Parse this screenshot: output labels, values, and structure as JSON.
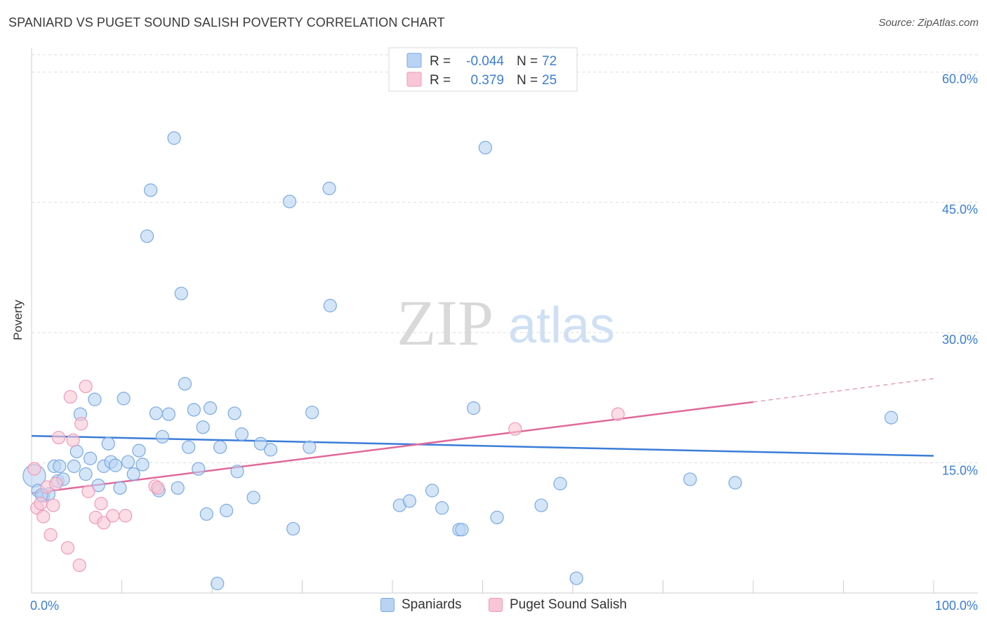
{
  "header": {
    "title": "SPANIARD VS PUGET SOUND SALISH POVERTY CORRELATION CHART",
    "source": "Source: ZipAtlas.com"
  },
  "watermark": {
    "part1": "ZIP",
    "part2": "atlas"
  },
  "colors": {
    "blue": "#3b7dd8",
    "blue_fill": "#b8d3f3",
    "blue_stroke": "#7aaae3",
    "pink": "#e0699a",
    "pink_fill": "#f8c6d6",
    "pink_stroke": "#ee9ab8",
    "tick_label": "#3b7dd8",
    "grid": "#dddddd"
  },
  "legend": {
    "rows": [
      {
        "r_label": "R =",
        "r_value": "-0.044",
        "n_label": "N =",
        "n_value": "72"
      },
      {
        "r_label": "R =",
        "r_value": "0.379",
        "n_label": "N =",
        "n_value": "25"
      }
    ]
  },
  "legend_bottom": {
    "items": [
      "Spaniards",
      "Puget Sound Salish"
    ]
  },
  "chart_data": {
    "type": "scatter",
    "title": "SPANIARD VS PUGET SOUND SALISH POVERTY CORRELATION CHART",
    "xlabel": "",
    "ylabel": "Poverty",
    "xlim": [
      0,
      100
    ],
    "ylim": [
      0,
      62
    ],
    "x_tick_labels": [
      "0.0%",
      "100.0%"
    ],
    "y_ticks": [
      15,
      30,
      45,
      60
    ],
    "y_tick_labels": [
      "15.0%",
      "30.0%",
      "45.0%",
      "60.0%"
    ],
    "series": [
      {
        "name": "Spaniards",
        "r": -0.044,
        "n": 72,
        "trend": {
          "x0": 0,
          "y0": 18.1,
          "x1": 100,
          "y1": 15.8
        },
        "points": [
          [
            0.3,
            13.5
          ],
          [
            0.7,
            11.8
          ],
          [
            1.3,
            11.2
          ],
          [
            1.9,
            11.4
          ],
          [
            2.5,
            14.6
          ],
          [
            2.9,
            12.9
          ],
          [
            3.1,
            14.6
          ],
          [
            3.5,
            13.1
          ],
          [
            4.7,
            14.6
          ],
          [
            5.0,
            16.3
          ],
          [
            5.4,
            20.6
          ],
          [
            6.0,
            13.7
          ],
          [
            6.5,
            15.5
          ],
          [
            7.0,
            22.3
          ],
          [
            7.4,
            12.4
          ],
          [
            8.0,
            14.6
          ],
          [
            8.5,
            17.2
          ],
          [
            8.8,
            15.1
          ],
          [
            9.3,
            14.7
          ],
          [
            9.8,
            12.1
          ],
          [
            10.2,
            22.4
          ],
          [
            10.7,
            15.1
          ],
          [
            11.3,
            13.7
          ],
          [
            11.9,
            16.4
          ],
          [
            12.3,
            14.8
          ],
          [
            12.8,
            41.1
          ],
          [
            13.2,
            46.4
          ],
          [
            13.8,
            20.7
          ],
          [
            14.1,
            11.8
          ],
          [
            14.5,
            18.0
          ],
          [
            15.2,
            20.6
          ],
          [
            15.8,
            52.4
          ],
          [
            16.2,
            12.1
          ],
          [
            16.6,
            34.5
          ],
          [
            17.0,
            24.1
          ],
          [
            17.4,
            16.8
          ],
          [
            18.0,
            21.1
          ],
          [
            18.5,
            14.3
          ],
          [
            19.0,
            19.1
          ],
          [
            19.4,
            9.1
          ],
          [
            19.8,
            21.3
          ],
          [
            20.6,
            1.1
          ],
          [
            20.9,
            16.8
          ],
          [
            21.6,
            9.5
          ],
          [
            22.5,
            20.7
          ],
          [
            22.8,
            14.0
          ],
          [
            23.3,
            18.3
          ],
          [
            24.6,
            11.0
          ],
          [
            25.4,
            17.2
          ],
          [
            26.5,
            16.5
          ],
          [
            28.6,
            45.1
          ],
          [
            29.0,
            7.4
          ],
          [
            30.8,
            16.8
          ],
          [
            31.1,
            20.8
          ],
          [
            33.0,
            46.6
          ],
          [
            33.1,
            33.1
          ],
          [
            40.8,
            10.1
          ],
          [
            41.9,
            10.6
          ],
          [
            44.4,
            11.8
          ],
          [
            45.5,
            9.8
          ],
          [
            47.4,
            7.3
          ],
          [
            47.7,
            7.3
          ],
          [
            49.0,
            21.3
          ],
          [
            50.3,
            51.3
          ],
          [
            51.6,
            8.7
          ],
          [
            56.5,
            10.1
          ],
          [
            58.6,
            12.6
          ],
          [
            60.4,
            1.7
          ],
          [
            73.0,
            13.1
          ],
          [
            78.0,
            12.7
          ],
          [
            95.3,
            20.2
          ],
          [
            1.1,
            11.3
          ]
        ]
      },
      {
        "name": "Puget Sound Salish",
        "r": 0.379,
        "n": 25,
        "trend": {
          "x0": 0,
          "y0": 11.5,
          "x1": 80,
          "y1": 22.0,
          "dash_to_x": 100,
          "dash_to_y": 24.7
        },
        "points": [
          [
            0.3,
            14.3
          ],
          [
            0.6,
            9.8
          ],
          [
            1.0,
            10.3
          ],
          [
            1.3,
            8.8
          ],
          [
            1.7,
            12.2
          ],
          [
            2.1,
            6.7
          ],
          [
            2.4,
            10.1
          ],
          [
            2.7,
            12.6
          ],
          [
            3.0,
            17.9
          ],
          [
            4.0,
            5.2
          ],
          [
            4.3,
            22.6
          ],
          [
            4.6,
            17.6
          ],
          [
            5.3,
            3.2
          ],
          [
            5.5,
            19.5
          ],
          [
            6.0,
            23.8
          ],
          [
            6.3,
            11.7
          ],
          [
            7.1,
            8.7
          ],
          [
            7.7,
            10.3
          ],
          [
            8.0,
            8.1
          ],
          [
            9.0,
            8.9
          ],
          [
            10.4,
            8.9
          ],
          [
            13.7,
            12.3
          ],
          [
            53.6,
            18.9
          ],
          [
            65.0,
            20.6
          ],
          [
            14.0,
            12.1
          ]
        ]
      }
    ]
  }
}
